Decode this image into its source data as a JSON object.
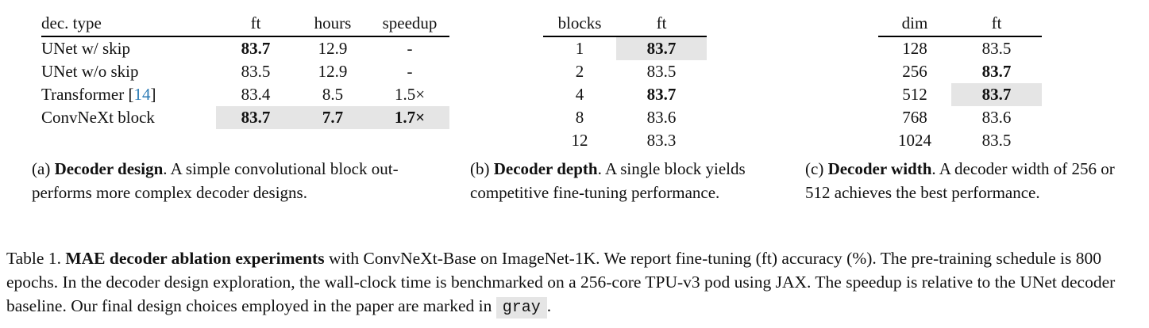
{
  "table_a": {
    "headers": [
      "dec. type",
      "ft",
      "hours",
      "speedup"
    ],
    "rows": [
      {
        "type": "UNet w/ skip",
        "ft": "83.7",
        "hours": "12.9",
        "speedup": "-"
      },
      {
        "type": "UNet w/o skip",
        "ft": "83.5",
        "hours": "12.9",
        "speedup": "-"
      },
      {
        "type": "Transformer [",
        "cite": "14",
        "type_suffix": "]",
        "ft": "83.4",
        "hours": "8.5",
        "speedup": "1.5×"
      },
      {
        "type": "ConvNeXt block",
        "ft": "83.7",
        "hours": "7.7",
        "speedup": "1.7×"
      }
    ],
    "caption_prefix": "(a) ",
    "caption_bold": "Decoder design",
    "caption_text": ". A simple convolutional block out-performs more complex decoder designs."
  },
  "table_b": {
    "headers": [
      "blocks",
      "ft"
    ],
    "rows": [
      {
        "blocks": "1",
        "ft": "83.7"
      },
      {
        "blocks": "2",
        "ft": "83.5"
      },
      {
        "blocks": "4",
        "ft": "83.7"
      },
      {
        "blocks": "8",
        "ft": "83.6"
      },
      {
        "blocks": "12",
        "ft": "83.3"
      }
    ],
    "caption_prefix": "(b) ",
    "caption_bold": "Decoder depth",
    "caption_text": ". A single block yields competitive fine-tuning performance."
  },
  "table_c": {
    "headers": [
      "dim",
      "ft"
    ],
    "rows": [
      {
        "dim": "128",
        "ft": "83.5"
      },
      {
        "dim": "256",
        "ft": "83.7"
      },
      {
        "dim": "512",
        "ft": "83.7"
      },
      {
        "dim": "768",
        "ft": "83.6"
      },
      {
        "dim": "1024",
        "ft": "83.5"
      }
    ],
    "caption_prefix": "(c) ",
    "caption_bold": "Decoder width",
    "caption_text": ". A decoder width of 256 or 512 achieves the best performance."
  },
  "main_caption": {
    "label": "Table 1. ",
    "bold": "MAE decoder ablation experiments",
    "text": " with ConvNeXt-Base on ImageNet-1K. We report fine-tuning (ft) accuracy (%). The pre-training schedule is 800 epochs. In the decoder design exploration, the wall-clock time is benchmarked on a 256-core TPU-v3 pod using JAX. The speedup is relative to the UNet decoder baseline. Our final design choices employed in the paper are marked in ",
    "gray_word": "gray",
    "end": "."
  }
}
